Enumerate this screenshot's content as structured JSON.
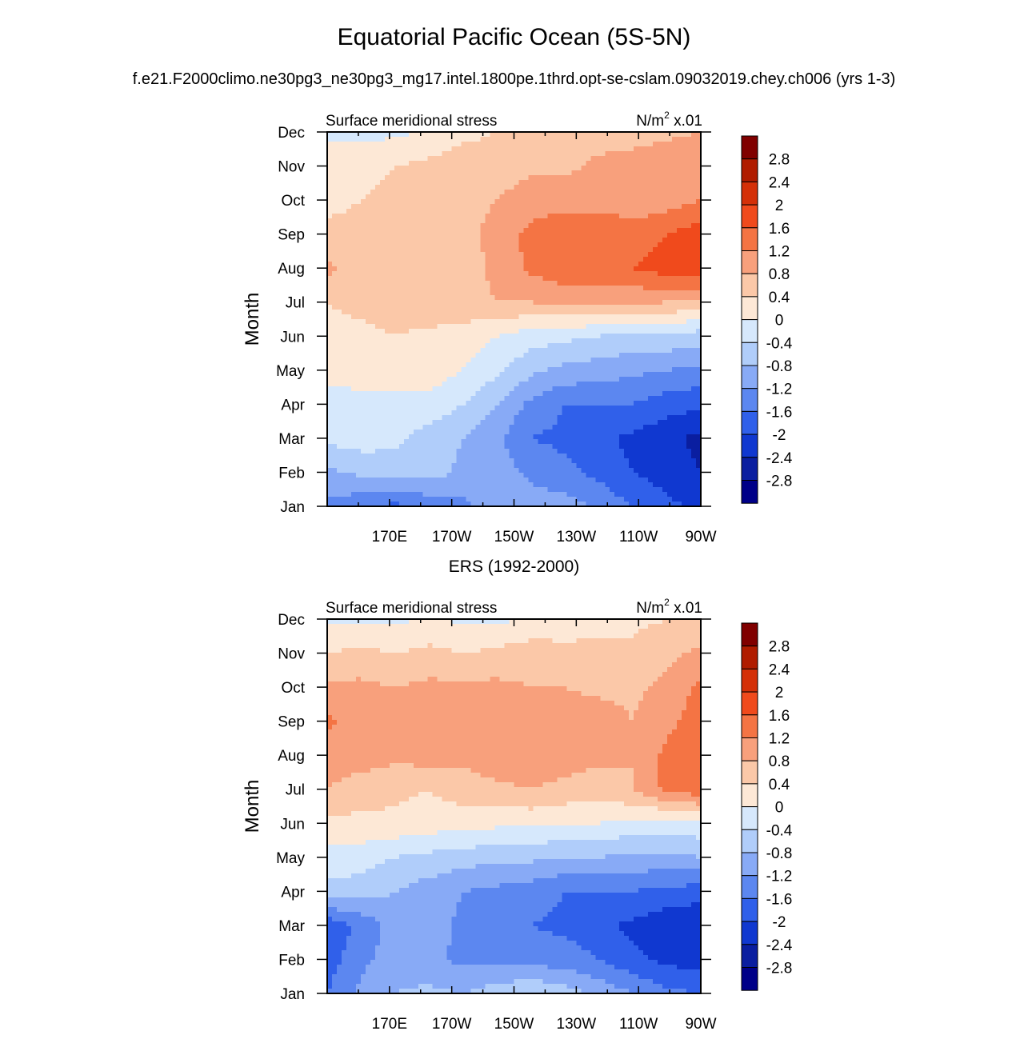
{
  "title": "Equatorial Pacific Ocean (5S-5N)",
  "subtitle": "f.e21.F2000climo.ne30pg3_ne30pg3_mg17.intel.1800pe.1thrd.opt-se-cslam.09032019.chey.ch006 (yrs 1-3)",
  "second_panel_title": "ERS (1992-2000)",
  "colorbar": {
    "levels": [
      "2.8",
      "2.4",
      "2",
      "1.6",
      "1.2",
      "0.8",
      "0.4",
      "0",
      "-0.4",
      "-0.8",
      "-1.2",
      "-1.6",
      "-2",
      "-2.4",
      "-2.8"
    ],
    "colors": [
      "#800000",
      "#b01c00",
      "#d43008",
      "#f04a1c",
      "#f47444",
      "#f8a07c",
      "#fbc8a8",
      "#fde8d6",
      "#d6e8fc",
      "#b0cdfa",
      "#88aaf6",
      "#5c87f0",
      "#3060ea",
      "#1038d0",
      "#0a1ea0",
      "#000088"
    ]
  },
  "chart_data": [
    {
      "type": "heatmap",
      "left_label": "Surface meridional stress",
      "right_label": "N/m",
      "units_exp": "2",
      "right_suffix": " x.01",
      "ylabel": "Month",
      "x_ticks": [
        "170E",
        "170W",
        "150W",
        "130W",
        "110W",
        "90W"
      ],
      "y_ticks": [
        "Dec",
        "Nov",
        "Oct",
        "Sep",
        "Aug",
        "Jul",
        "Jun",
        "May",
        "Apr",
        "Mar",
        "Feb",
        "Jan"
      ],
      "x": [
        "160E",
        "170E",
        "180",
        "170W",
        "160W",
        "150W",
        "140W",
        "130W",
        "120W",
        "110W",
        "100W",
        "90W"
      ],
      "y": [
        "Jan",
        "Feb",
        "Mar",
        "Apr",
        "May",
        "Jun",
        "Jul",
        "Aug",
        "Sep",
        "Oct",
        "Nov",
        "Dec"
      ],
      "values": [
        [
          -1.3,
          -1.5,
          -1.7,
          -1.5,
          -1.3,
          -1.0,
          -1.0,
          -1.0,
          -1.3,
          -1.6,
          -1.9,
          -2.1
        ],
        [
          -0.9,
          -0.7,
          -0.6,
          -0.6,
          -0.9,
          -1.0,
          -1.3,
          -1.5,
          -1.7,
          -2.0,
          -2.2,
          -2.4
        ],
        [
          -0.3,
          -0.2,
          -0.3,
          -0.6,
          -0.8,
          -1.1,
          -1.6,
          -1.7,
          -1.9,
          -2.1,
          -2.3,
          -2.5
        ],
        [
          -0.3,
          -0.2,
          -0.2,
          -0.1,
          -0.4,
          -0.8,
          -1.3,
          -1.6,
          -1.6,
          -1.6,
          -1.8,
          -1.9
        ],
        [
          0.2,
          0.3,
          0.3,
          0.2,
          0.0,
          -0.3,
          -0.7,
          -0.9,
          -1.0,
          -1.1,
          -1.2,
          -1.3
        ],
        [
          0.3,
          0.3,
          0.4,
          0.3,
          0.2,
          0.0,
          -0.2,
          -0.3,
          -0.4,
          -0.5,
          -0.5,
          -0.6
        ],
        [
          0.4,
          0.5,
          0.6,
          0.7,
          0.7,
          0.8,
          0.8,
          0.9,
          0.9,
          0.9,
          0.8,
          0.7
        ],
        [
          0.9,
          0.6,
          0.6,
          0.5,
          0.6,
          0.9,
          1.3,
          1.5,
          1.6,
          1.6,
          1.8,
          1.9
        ],
        [
          0.5,
          0.5,
          0.4,
          0.4,
          0.6,
          1.0,
          1.3,
          1.6,
          1.6,
          1.4,
          1.6,
          1.8
        ],
        [
          0.3,
          0.4,
          0.5,
          0.5,
          0.6,
          0.8,
          1.0,
          1.0,
          1.0,
          0.9,
          1.0,
          1.2
        ],
        [
          0.2,
          0.3,
          0.4,
          0.5,
          0.6,
          0.6,
          0.7,
          0.7,
          0.9,
          1.0,
          1.1,
          1.2
        ],
        [
          -0.1,
          -0.1,
          -0.1,
          0.1,
          0.3,
          0.4,
          0.5,
          0.5,
          0.6,
          0.6,
          0.7,
          0.8
        ]
      ]
    },
    {
      "type": "heatmap",
      "left_label": "Surface meridional stress",
      "right_label": "N/m",
      "units_exp": "2",
      "right_suffix": " x.01",
      "ylabel": "Month",
      "x_ticks": [
        "170E",
        "170W",
        "150W",
        "130W",
        "110W",
        "90W"
      ],
      "y_ticks": [
        "Dec",
        "Nov",
        "Oct",
        "Sep",
        "Aug",
        "Jul",
        "Jun",
        "May",
        "Apr",
        "Mar",
        "Feb",
        "Jan"
      ],
      "x": [
        "160E",
        "170E",
        "180",
        "170W",
        "160W",
        "150W",
        "140W",
        "130W",
        "120W",
        "110W",
        "100W",
        "90W"
      ],
      "y": [
        "Jan",
        "Feb",
        "Mar",
        "Apr",
        "May",
        "Jun",
        "Jul",
        "Aug",
        "Sep",
        "Oct",
        "Nov",
        "Dec"
      ],
      "values": [
        [
          -1.6,
          -1.1,
          -0.8,
          -0.7,
          -0.8,
          -0.6,
          -0.4,
          -0.6,
          -0.9,
          -1.2,
          -1.5,
          -1.6
        ],
        [
          -1.8,
          -1.3,
          -1.0,
          -1.1,
          -1.3,
          -1.3,
          -1.4,
          -1.4,
          -1.6,
          -1.9,
          -2.1,
          -2.2
        ],
        [
          -1.9,
          -1.5,
          -1.0,
          -1.0,
          -1.3,
          -1.5,
          -1.6,
          -1.7,
          -1.9,
          -2.1,
          -2.3,
          -2.4
        ],
        [
          -0.5,
          -0.6,
          -0.8,
          -1.0,
          -1.2,
          -1.3,
          -1.4,
          -1.6,
          -1.6,
          -1.6,
          -1.7,
          -1.8
        ],
        [
          -0.2,
          -0.2,
          -0.4,
          -0.5,
          -0.6,
          -0.7,
          -0.7,
          -0.8,
          -0.8,
          -0.9,
          -0.9,
          -0.8
        ],
        [
          0.3,
          0.3,
          0.3,
          0.2,
          0.2,
          0.1,
          0.1,
          0.0,
          0.0,
          -0.1,
          -0.2,
          -0.1
        ],
        [
          0.8,
          0.6,
          0.5,
          0.4,
          0.6,
          0.7,
          0.8,
          0.7,
          0.6,
          0.8,
          1.3,
          1.5
        ],
        [
          1.0,
          1.0,
          0.9,
          1.0,
          0.9,
          1.1,
          1.1,
          1.0,
          0.9,
          0.8,
          1.3,
          1.5
        ],
        [
          1.3,
          1.0,
          1.0,
          0.9,
          0.8,
          1.0,
          1.0,
          1.0,
          1.0,
          0.8,
          1.1,
          1.4
        ],
        [
          0.9,
          0.9,
          0.8,
          0.9,
          0.9,
          0.9,
          0.8,
          0.8,
          0.7,
          0.7,
          0.9,
          1.3
        ],
        [
          0.4,
          0.5,
          0.4,
          0.5,
          0.4,
          0.5,
          0.6,
          0.5,
          0.5,
          0.5,
          0.7,
          0.9
        ],
        [
          -0.1,
          -0.1,
          -0.1,
          0.1,
          -0.1,
          -0.1,
          0.1,
          0.2,
          0.3,
          0.3,
          0.4,
          0.5
        ]
      ]
    }
  ]
}
